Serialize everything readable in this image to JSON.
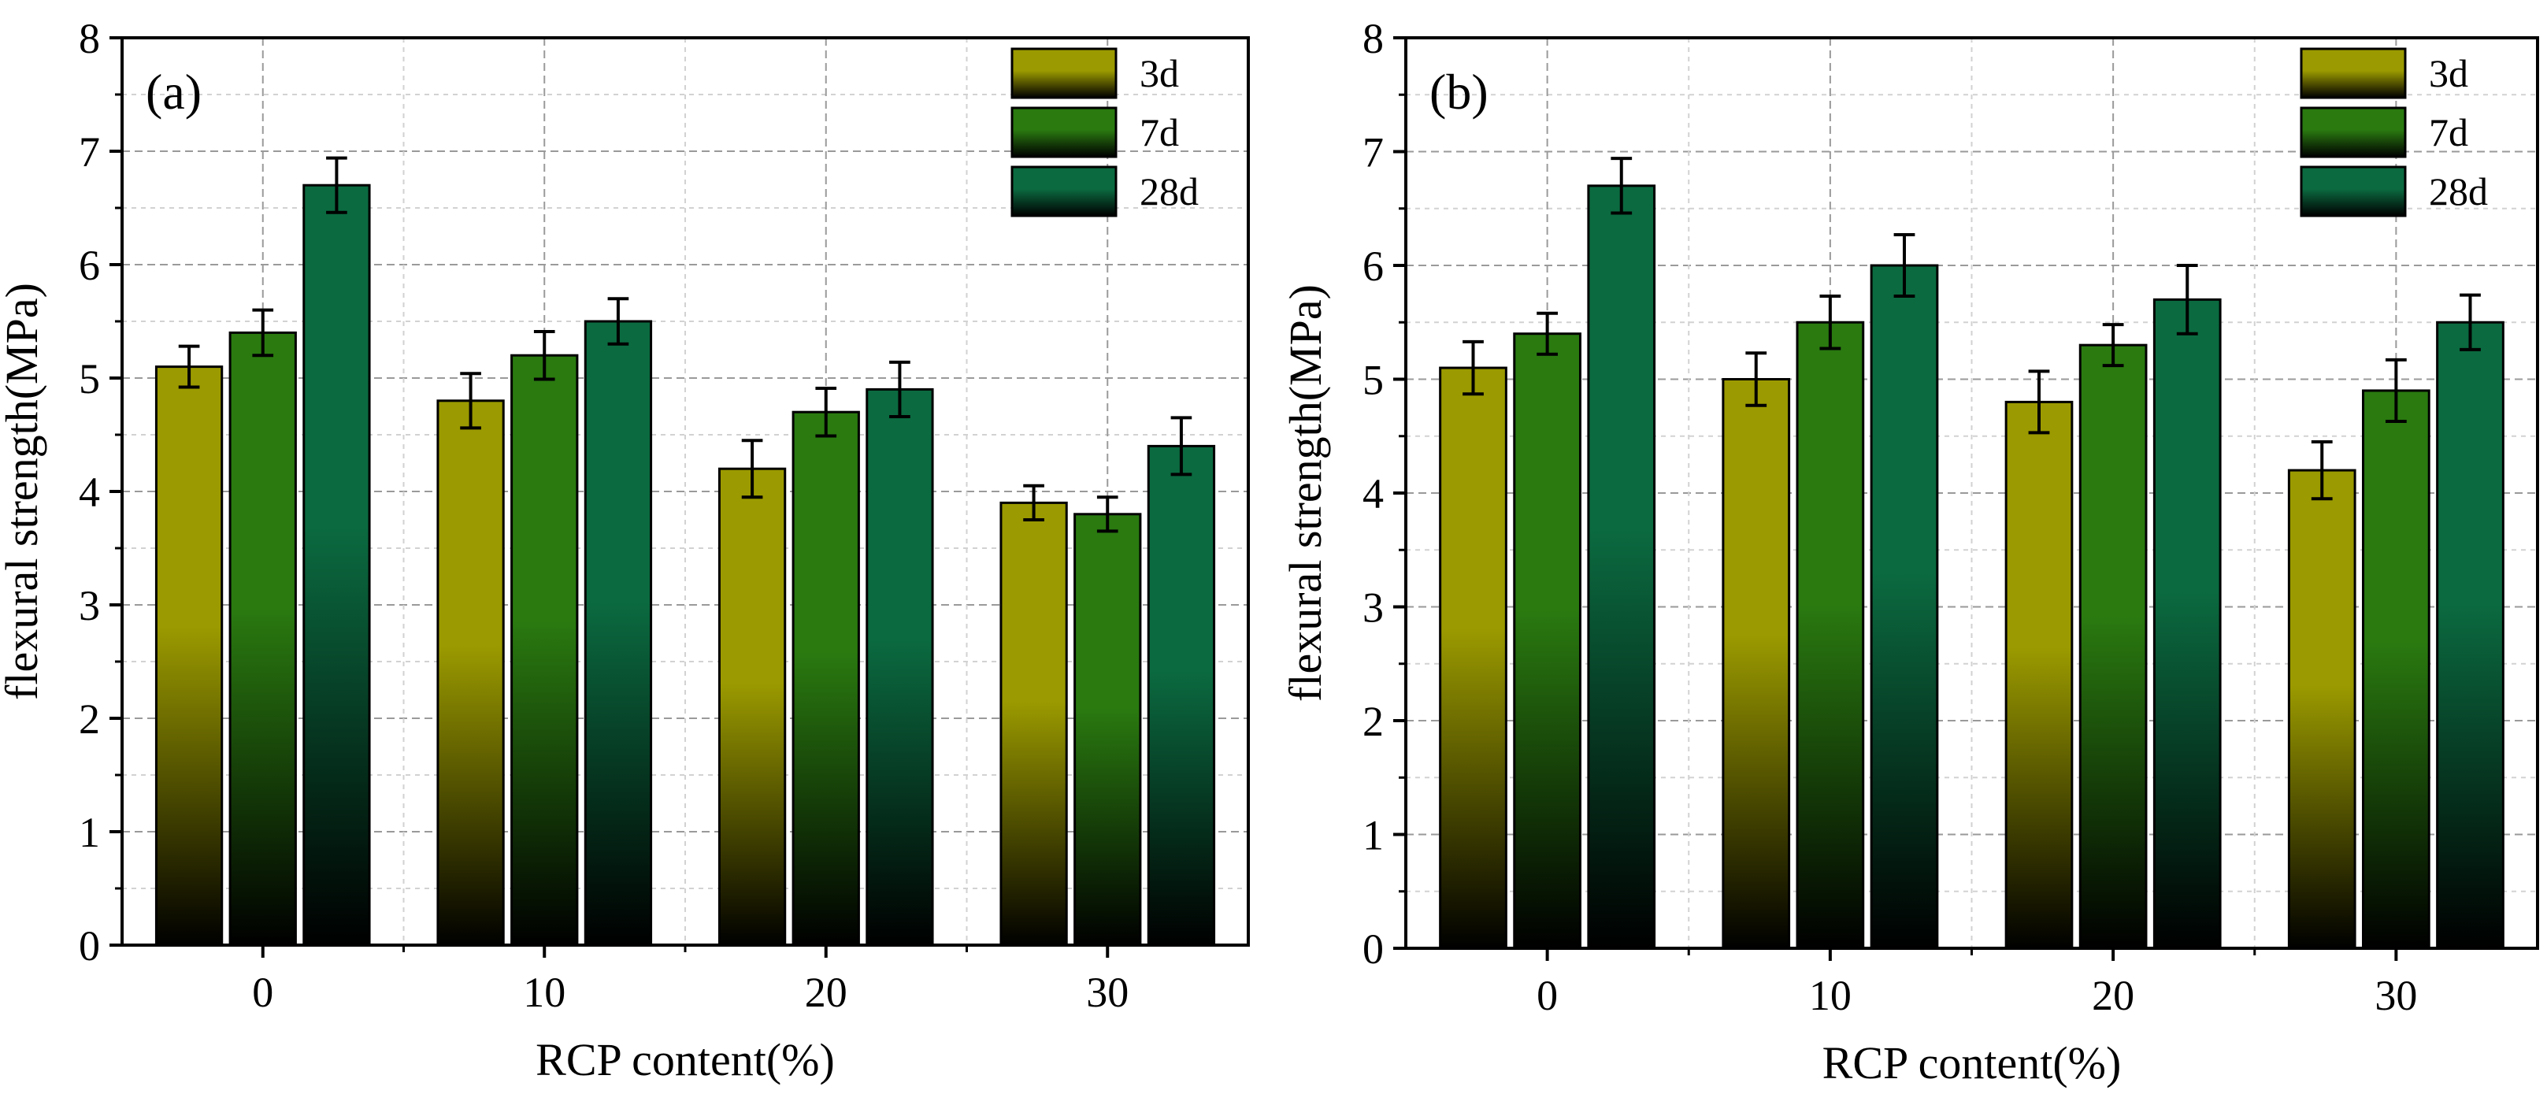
{
  "chart_data": [
    {
      "type": "bar",
      "panel_label": "(a)",
      "xlabel": "RCP content(%)",
      "ylabel": "flexural strength(MPa)",
      "categories": [
        "0",
        "10",
        "20",
        "30"
      ],
      "ylim": [
        0,
        8
      ],
      "yticks": [
        "0",
        "1",
        "2",
        "3",
        "4",
        "5",
        "6",
        "7",
        "8"
      ],
      "grid": true,
      "legend_position": "top-right",
      "series": [
        {
          "name": "3d",
          "color": "#9b9a00",
          "values": [
            5.1,
            4.8,
            4.2,
            3.9
          ],
          "errors": [
            0.18,
            0.24,
            0.25,
            0.15
          ]
        },
        {
          "name": "7d",
          "color": "#2a7a10",
          "values": [
            5.4,
            5.2,
            4.7,
            3.8
          ],
          "errors": [
            0.2,
            0.21,
            0.21,
            0.15
          ]
        },
        {
          "name": "28d",
          "color": "#0b6a40",
          "values": [
            6.7,
            5.5,
            4.9,
            4.4
          ],
          "errors": [
            0.24,
            0.2,
            0.24,
            0.25
          ]
        }
      ]
    },
    {
      "type": "bar",
      "panel_label": "(b)",
      "xlabel": "RCP content(%)",
      "ylabel": "flexural strength(MPa)",
      "categories": [
        "0",
        "10",
        "20",
        "30"
      ],
      "ylim": [
        0,
        8
      ],
      "yticks": [
        "0",
        "1",
        "2",
        "3",
        "4",
        "5",
        "6",
        "7",
        "8"
      ],
      "grid": true,
      "legend_position": "top-right",
      "series": [
        {
          "name": "3d",
          "color": "#9b9a00",
          "values": [
            5.1,
            5.0,
            4.8,
            4.2
          ],
          "errors": [
            0.23,
            0.23,
            0.27,
            0.25
          ]
        },
        {
          "name": "7d",
          "color": "#2a7a10",
          "values": [
            5.4,
            5.5,
            5.3,
            4.9
          ],
          "errors": [
            0.18,
            0.23,
            0.18,
            0.27
          ]
        },
        {
          "name": "28d",
          "color": "#0b6a40",
          "values": [
            6.7,
            6.0,
            5.7,
            5.5
          ],
          "errors": [
            0.24,
            0.27,
            0.3,
            0.24
          ]
        }
      ]
    }
  ]
}
